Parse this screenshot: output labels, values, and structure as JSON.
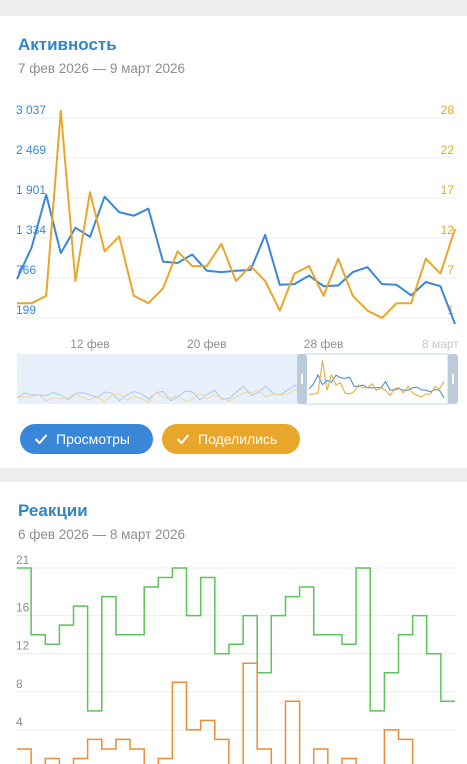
{
  "activity": {
    "title": "Активность",
    "period": "7 фев 2026 — 9 март 2026",
    "left_ticks": [
      "3 037",
      "2 469",
      "1 901",
      "1 334",
      "766",
      "199"
    ],
    "right_ticks": [
      "28",
      "22",
      "17",
      "12",
      "7",
      "1"
    ],
    "x_ticks": [
      "12 фев",
      "20 фев",
      "28 фев",
      "8 март"
    ],
    "toggles": [
      {
        "label": "Просмотры",
        "color": "#3a87d9"
      },
      {
        "label": "Поделились",
        "color": "#e8a62b"
      }
    ]
  },
  "reactions": {
    "title": "Реакции",
    "period": "6 фев 2026 — 8 март 2026",
    "y_ticks": [
      "21",
      "16",
      "12",
      "8",
      "4"
    ]
  },
  "chart_data": [
    {
      "type": "line",
      "title": "Активность",
      "subtitle": "7 фев 2026 — 9 март 2026",
      "x": [
        "2026-02-07",
        "2026-02-08",
        "2026-02-09",
        "2026-02-10",
        "2026-02-11",
        "2026-02-12",
        "2026-02-13",
        "2026-02-14",
        "2026-02-15",
        "2026-02-16",
        "2026-02-17",
        "2026-02-18",
        "2026-02-19",
        "2026-02-20",
        "2026-02-21",
        "2026-02-22",
        "2026-02-23",
        "2026-02-24",
        "2026-02-25",
        "2026-02-26",
        "2026-02-27",
        "2026-02-28",
        "2026-03-01",
        "2026-03-02",
        "2026-03-03",
        "2026-03-04",
        "2026-03-05",
        "2026-03-06",
        "2026-03-07",
        "2026-03-08",
        "2026-03-09"
      ],
      "x_tick_labels": [
        "12 фев",
        "20 фев",
        "28 фев",
        "8 март"
      ],
      "y_left": {
        "ticks": [
          199,
          766,
          1334,
          1901,
          2469,
          3037
        ],
        "range": [
          199,
          3037
        ]
      },
      "y_right": {
        "ticks": [
          1,
          7,
          12,
          17,
          22,
          28
        ],
        "range": [
          1,
          28
        ]
      },
      "series": [
        {
          "name": "Просмотры",
          "axis": "left",
          "color": "#3a87d9",
          "values": [
            750,
            1200,
            1950,
            1120,
            1480,
            1350,
            1920,
            1700,
            1650,
            1750,
            1000,
            980,
            1100,
            870,
            850,
            870,
            880,
            1380,
            670,
            680,
            800,
            650,
            660,
            850,
            920,
            680,
            670,
            520,
            710,
            650,
            0
          ]
        },
        {
          "name": "Поделились",
          "axis": "right",
          "color": "#e8a62b",
          "values": [
            3,
            3,
            4,
            29,
            6,
            18,
            10,
            12,
            4,
            3,
            5,
            10,
            8,
            8,
            11,
            6,
            8,
            6,
            2,
            7,
            8,
            4,
            9,
            4,
            2,
            1,
            3,
            3,
            9,
            7,
            13
          ]
        }
      ]
    },
    {
      "type": "line",
      "title": "Реакции",
      "subtitle": "6 фев 2026 — 8 март 2026",
      "y_ticks": [
        4,
        8,
        12,
        16,
        21
      ],
      "y_range": [
        0,
        21
      ],
      "step": true,
      "series": [
        {
          "name": "",
          "color": "#5cc458",
          "values": [
            21,
            14,
            13,
            15,
            17,
            6,
            18,
            14,
            14,
            19,
            20,
            21,
            16,
            20,
            12,
            13,
            16,
            10,
            16,
            18,
            19,
            14,
            14,
            13,
            21,
            6,
            10,
            14,
            16,
            12,
            7
          ]
        },
        {
          "name": "",
          "color": "#ee8c34",
          "values": [
            2,
            0,
            1,
            0,
            1,
            3,
            2,
            3,
            2,
            0,
            1,
            9,
            4,
            5,
            3,
            0,
            11,
            2,
            0,
            7,
            0,
            2,
            0,
            1,
            0,
            0,
            4,
            3,
            0,
            0,
            0
          ]
        }
      ]
    }
  ]
}
